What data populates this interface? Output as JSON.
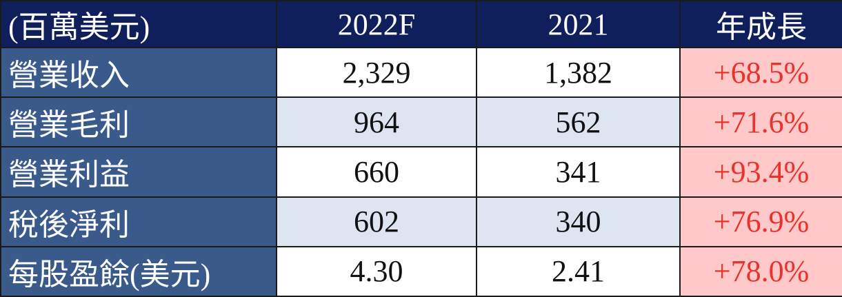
{
  "table": {
    "header": [
      "(百萬美元)",
      "2022F",
      "2021",
      "年成長"
    ],
    "rows": [
      [
        "營業收入",
        "2,329",
        "1,382",
        "+68.5%"
      ],
      [
        "營業毛利",
        "964",
        "562",
        "+71.6%"
      ],
      [
        "營業利益",
        "660",
        "341",
        "+93.4%"
      ],
      [
        "稅後淨利",
        "602",
        "340",
        "+76.9%"
      ],
      [
        "每股盈餘(美元)",
        "4.30",
        "2.41",
        "+78.0%"
      ]
    ]
  }
}
